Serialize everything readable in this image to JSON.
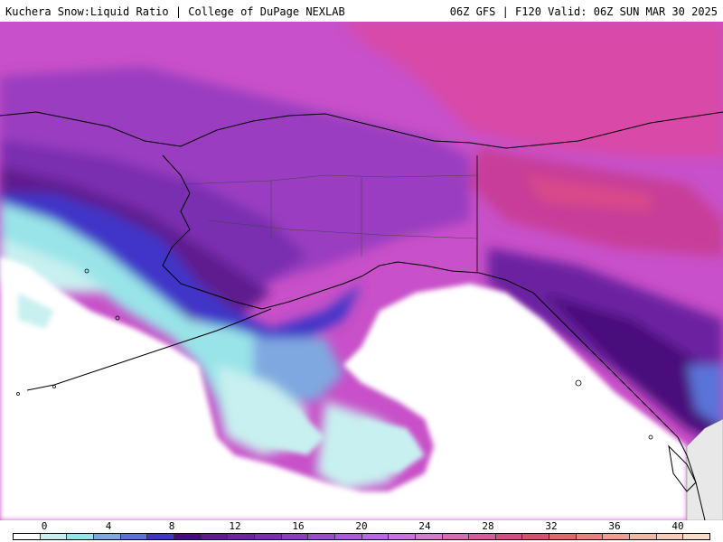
{
  "header": {
    "left": "Kuchera Snow:Liquid Ratio | College of DuPage NEXLAB",
    "right": "06Z GFS | F120 Valid: 06Z SUN MAR 30 2025"
  },
  "legend": {
    "ticks": [
      "0",
      "4",
      "8",
      "12",
      "16",
      "20",
      "24",
      "28",
      "32",
      "36",
      "40"
    ],
    "colors": [
      "#ffffff",
      "#c8f0f0",
      "#99e4e8",
      "#7fa8e0",
      "#5a73d8",
      "#3f36c8",
      "#4a0a7c",
      "#5e1a8e",
      "#6c24a0",
      "#7a2fb0",
      "#8a3ec0",
      "#9a4ccc",
      "#aa5ad6",
      "#ba68de",
      "#c874da",
      "#d27ccc",
      "#d86cb4",
      "#d85c9c",
      "#d84c84",
      "#d85070",
      "#e06a6a",
      "#e8847c",
      "#eea090",
      "#f2b8a4",
      "#f6ceb8",
      "#f8dcc8"
    ]
  },
  "map": {
    "region": "Alaska / NE Pacific",
    "land_outline_color": "#000000"
  }
}
